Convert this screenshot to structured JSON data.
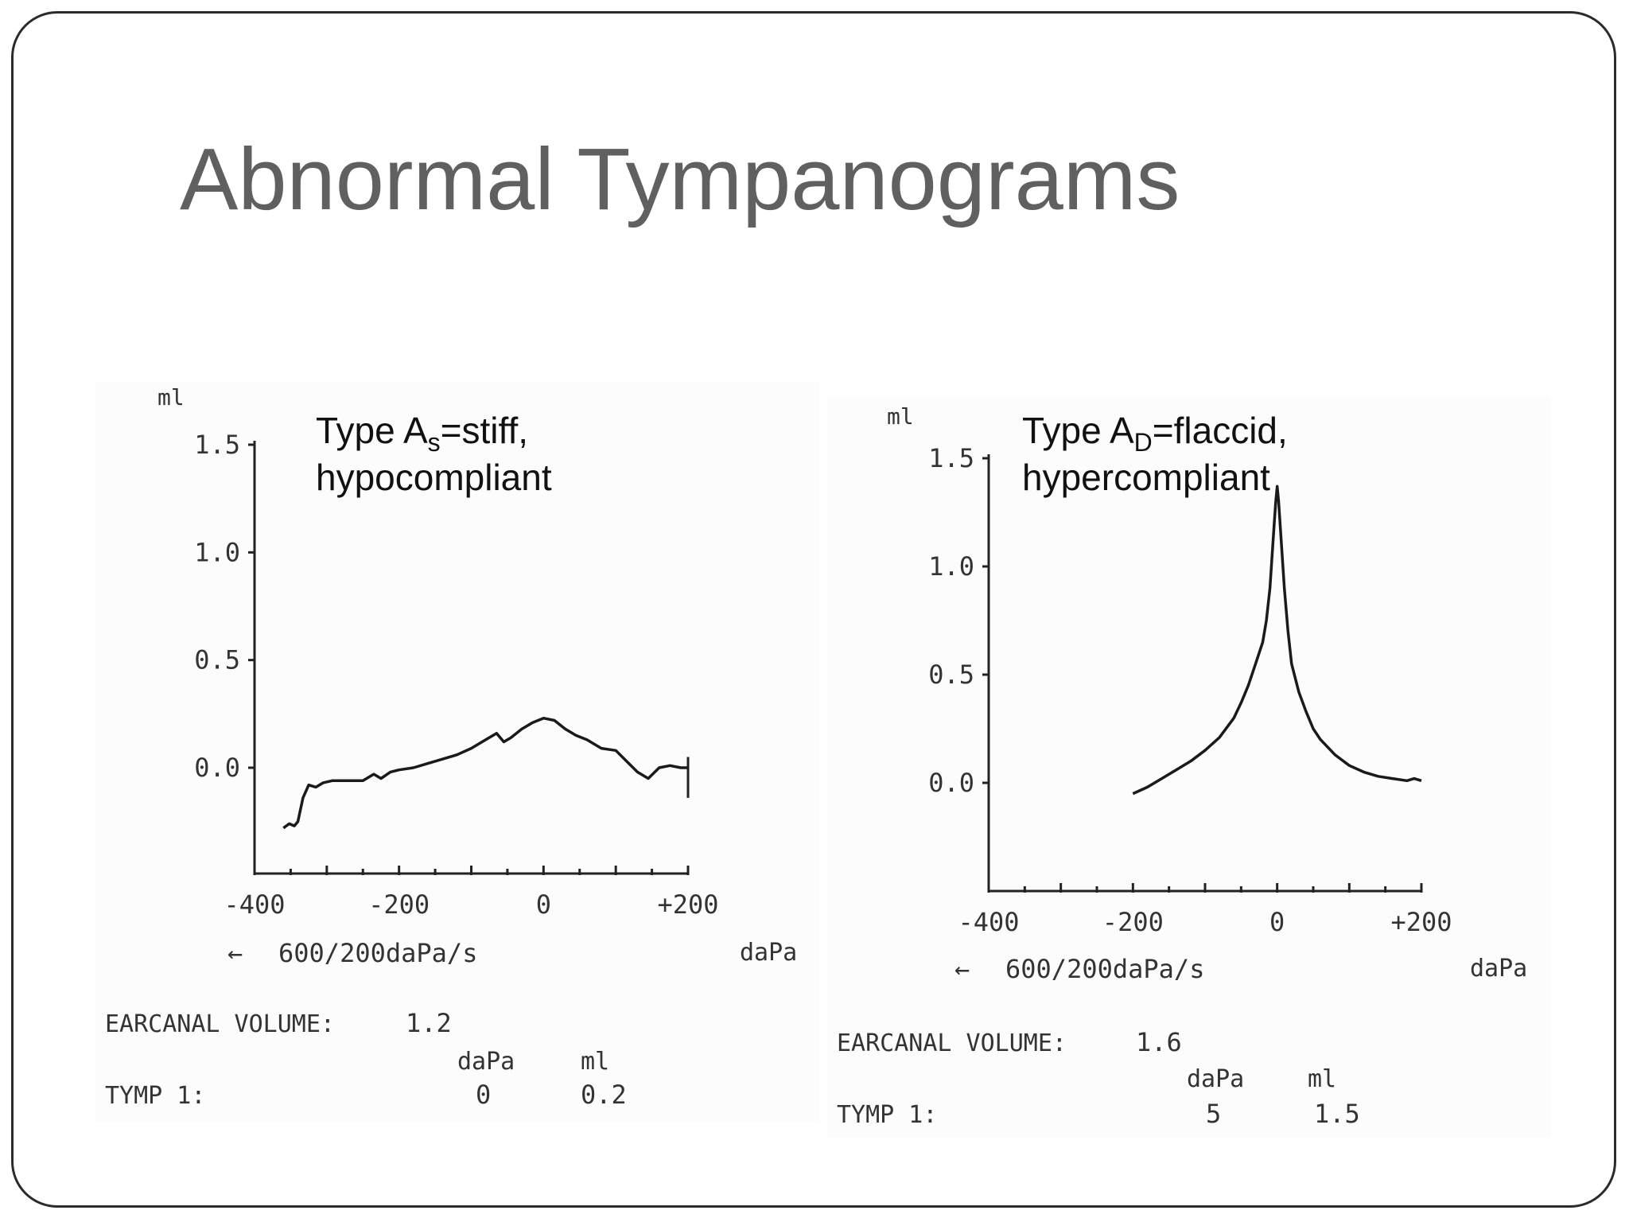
{
  "slide": {
    "title": "Abnormal Tympanograms"
  },
  "chart_data": [
    {
      "type": "line",
      "annotation": {
        "line1_prefix": "Type A",
        "line1_sub": "s",
        "line1_suffix": "=stiff,",
        "line2": "hypocompliant"
      },
      "ylabel": "ml",
      "xlabel": "daPa",
      "xlim": [
        -400,
        200
      ],
      "ylim": [
        -0.5,
        1.5
      ],
      "yticks": [
        "1.5",
        "1.0",
        "0.5",
        "0.0"
      ],
      "ytick_values": [
        1.5,
        1.0,
        0.5,
        0.0
      ],
      "xticks": [
        "-400",
        "-200",
        "0",
        "+200"
      ],
      "xtick_values": [
        -400,
        -200,
        0,
        200
      ],
      "rate_label": "600/200daPa/s",
      "earcanal_label": "EARCANAL VOLUME:",
      "earcanal_value": "1.2",
      "tymp_label": "TYMP 1:",
      "col_dapa": "daPa",
      "col_ml": "ml",
      "tymp_dapa": "0",
      "tymp_ml": "0.2",
      "series": [
        {
          "x": [
            -360,
            -352,
            -345,
            -340,
            -333,
            -325,
            -315,
            -305,
            -292,
            -280,
            -250,
            -235,
            -225,
            -212,
            -200,
            -180,
            -160,
            -140,
            -120,
            -100,
            -80,
            -65,
            -55,
            -45,
            -30,
            -15,
            0,
            15,
            30,
            45,
            60,
            80,
            100,
            115,
            130,
            145,
            160,
            175,
            190,
            200
          ],
          "y": [
            -0.28,
            -0.26,
            -0.27,
            -0.25,
            -0.14,
            -0.08,
            -0.09,
            -0.07,
            -0.06,
            -0.06,
            -0.06,
            -0.03,
            -0.05,
            -0.02,
            -0.01,
            0.0,
            0.02,
            0.04,
            0.06,
            0.09,
            0.13,
            0.16,
            0.12,
            0.14,
            0.18,
            0.21,
            0.23,
            0.22,
            0.18,
            0.15,
            0.13,
            0.09,
            0.08,
            0.03,
            -0.02,
            -0.05,
            0.0,
            0.01,
            0.0,
            0.0
          ]
        }
      ]
    },
    {
      "type": "line",
      "annotation": {
        "line1_prefix": "Type A",
        "line1_sub": "D",
        "line1_suffix": "=flaccid,",
        "line2": "hypercompliant"
      },
      "ylabel": "ml",
      "xlabel": "daPa",
      "xlim": [
        -400,
        200
      ],
      "ylim": [
        -0.5,
        1.5
      ],
      "yticks": [
        "1.5",
        "1.0",
        "0.5",
        "0.0"
      ],
      "ytick_values": [
        1.5,
        1.0,
        0.5,
        0.0
      ],
      "xticks": [
        "-400",
        "-200",
        "0",
        "+200"
      ],
      "xtick_values": [
        -400,
        -200,
        0,
        200
      ],
      "rate_label": "600/200daPa/s",
      "earcanal_label": "EARCANAL VOLUME:",
      "earcanal_value": "1.6",
      "tymp_label": "TYMP 1:",
      "col_dapa": "daPa",
      "col_ml": "ml",
      "tymp_dapa": "5",
      "tymp_ml": "1.5",
      "series": [
        {
          "x": [
            -200,
            -180,
            -160,
            -140,
            -120,
            -100,
            -80,
            -60,
            -50,
            -40,
            -30,
            -20,
            -15,
            -10,
            -7,
            -4,
            -2,
            0,
            2,
            4,
            7,
            10,
            15,
            20,
            30,
            40,
            50,
            60,
            80,
            100,
            120,
            140,
            160,
            180,
            190,
            200
          ],
          "y": [
            -0.05,
            -0.02,
            0.02,
            0.06,
            0.1,
            0.15,
            0.21,
            0.3,
            0.37,
            0.45,
            0.55,
            0.65,
            0.75,
            0.9,
            1.05,
            1.2,
            1.3,
            1.37,
            1.3,
            1.2,
            1.05,
            0.9,
            0.7,
            0.55,
            0.42,
            0.33,
            0.25,
            0.2,
            0.13,
            0.08,
            0.05,
            0.03,
            0.02,
            0.01,
            0.02,
            0.01
          ]
        }
      ]
    }
  ]
}
